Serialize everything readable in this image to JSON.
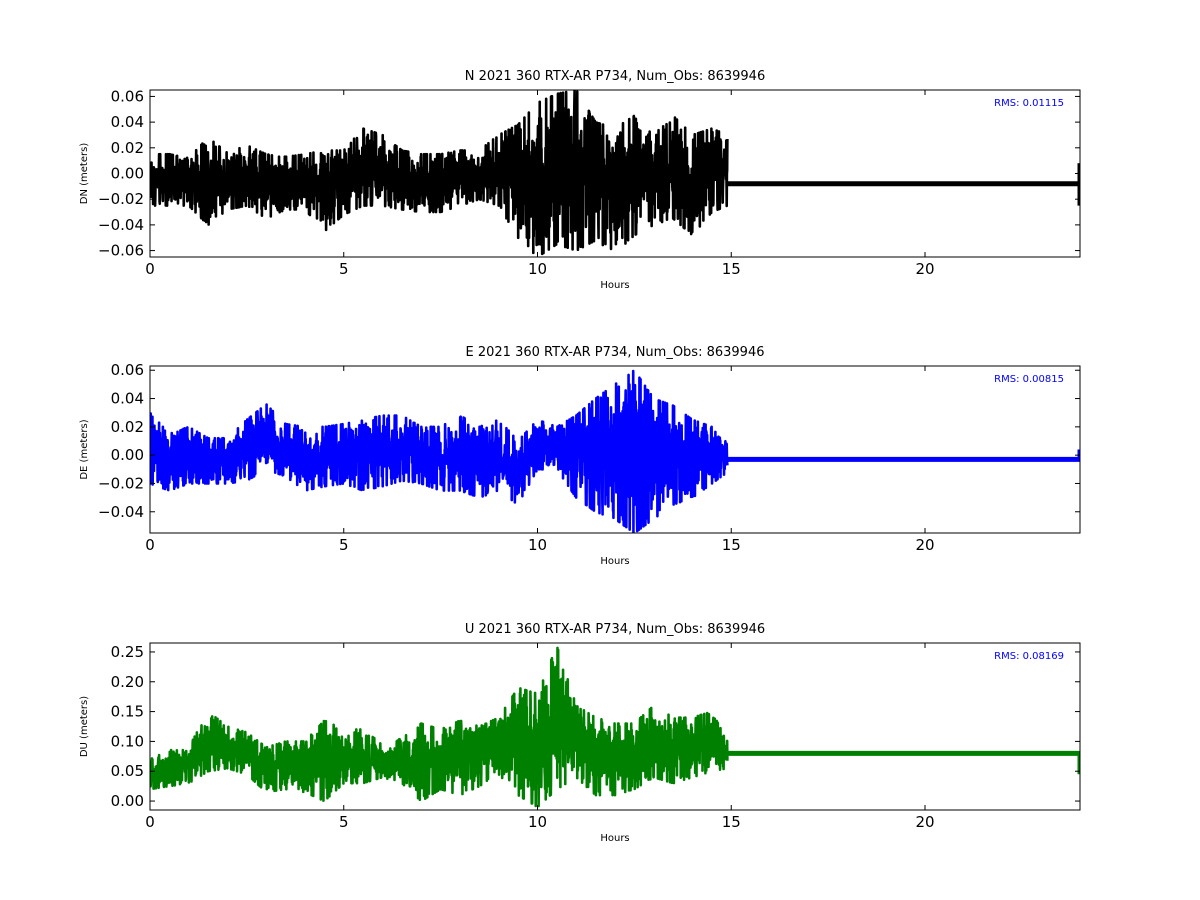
{
  "chart_data": [
    {
      "type": "line",
      "title": "N 2021 360 RTX-AR  P734, Num_Obs: 8639946",
      "xlabel": "Hours",
      "ylabel": "DN (meters)",
      "xlim": [
        0,
        24
      ],
      "ylim": [
        -0.065,
        0.065
      ],
      "xticks": [
        0,
        5,
        10,
        15,
        20
      ],
      "yticks": [
        -0.06,
        -0.04,
        -0.02,
        0.0,
        0.02,
        0.04,
        0.06
      ],
      "ytick_labels": [
        "−0.06",
        "−0.04",
        "−0.02",
        "0.00",
        "0.02",
        "0.04",
        "0.06"
      ],
      "annotation": "RMS:  0.01115",
      "annotation_color": "#0000ff",
      "grid": false,
      "series": [
        {
          "color": "#000000",
          "envelope_x": [
            0,
            0.5,
            1,
            1.5,
            2,
            2.5,
            3,
            3.5,
            4,
            4.5,
            5,
            5.5,
            6,
            6.5,
            7,
            7.5,
            8,
            8.5,
            9,
            9.5,
            10,
            10.5,
            11,
            11.5,
            12,
            12.5,
            13,
            13.5,
            14,
            14.5,
            14.9
          ],
          "envelope_max": [
            0.015,
            0.015,
            0.012,
            0.028,
            0.016,
            0.022,
            0.015,
            0.013,
            0.015,
            0.018,
            0.018,
            0.035,
            0.03,
            0.018,
            0.015,
            0.015,
            0.018,
            0.018,
            0.03,
            0.038,
            0.055,
            0.062,
            0.065,
            0.04,
            0.035,
            0.045,
            0.03,
            0.045,
            0.03,
            0.035,
            0.03
          ],
          "envelope_min": [
            -0.025,
            -0.025,
            -0.025,
            -0.04,
            -0.028,
            -0.025,
            -0.035,
            -0.028,
            -0.028,
            -0.045,
            -0.032,
            -0.025,
            -0.025,
            -0.028,
            -0.03,
            -0.03,
            -0.025,
            -0.02,
            -0.025,
            -0.05,
            -0.065,
            -0.055,
            -0.06,
            -0.052,
            -0.062,
            -0.048,
            -0.04,
            -0.035,
            -0.048,
            -0.03,
            -0.025
          ],
          "flat_x": [
            14.9,
            24
          ],
          "flat_y": -0.008,
          "end_spike": [
            -0.025,
            0.008
          ]
        }
      ]
    },
    {
      "type": "line",
      "title": "E 2021 360 RTX-AR  P734, Num_Obs: 8639946",
      "xlabel": "Hours",
      "ylabel": "DE (meters)",
      "xlim": [
        0,
        24
      ],
      "ylim": [
        -0.055,
        0.063
      ],
      "xticks": [
        0,
        5,
        10,
        15,
        20
      ],
      "yticks": [
        -0.04,
        -0.02,
        0.0,
        0.02,
        0.04,
        0.06
      ],
      "ytick_labels": [
        "−0.04",
        "−0.02",
        "0.00",
        "0.02",
        "0.04",
        "0.06"
      ],
      "annotation": "RMS:  0.00815",
      "annotation_color": "#0000ff",
      "grid": false,
      "series": [
        {
          "color": "#0000ff",
          "envelope_x": [
            0,
            0.5,
            1,
            1.5,
            2,
            2.5,
            3,
            3.5,
            4,
            4.5,
            5,
            5.5,
            6,
            6.5,
            7,
            7.5,
            8,
            8.5,
            9,
            9.5,
            10,
            10.5,
            11,
            11.5,
            12,
            12.5,
            13,
            13.5,
            14,
            14.5,
            14.9
          ],
          "envelope_max": [
            0.03,
            0.015,
            0.02,
            0.012,
            0.012,
            0.025,
            0.036,
            0.022,
            0.02,
            0.02,
            0.022,
            0.025,
            0.028,
            0.028,
            0.02,
            0.02,
            0.028,
            0.02,
            0.025,
            0.01,
            0.025,
            0.02,
            0.028,
            0.04,
            0.05,
            0.06,
            0.04,
            0.035,
            0.025,
            0.02,
            0.01
          ],
          "envelope_min": [
            -0.02,
            -0.025,
            -0.02,
            -0.02,
            -0.02,
            -0.018,
            -0.01,
            -0.015,
            -0.025,
            -0.022,
            -0.02,
            -0.025,
            -0.022,
            -0.018,
            -0.02,
            -0.025,
            -0.025,
            -0.03,
            -0.025,
            -0.035,
            -0.01,
            -0.01,
            -0.03,
            -0.04,
            -0.045,
            -0.055,
            -0.045,
            -0.035,
            -0.03,
            -0.02,
            -0.012
          ],
          "flat_x": [
            14.9,
            24
          ],
          "flat_y": -0.003,
          "end_spike": [
            -0.004,
            0.004
          ]
        }
      ]
    },
    {
      "type": "line",
      "title": "U 2021 360 RTX-AR  P734, Num_Obs: 8639946",
      "xlabel": "Hours",
      "ylabel": "DU (meters)",
      "xlim": [
        0,
        24
      ],
      "ylim": [
        -0.015,
        0.265
      ],
      "xticks": [
        0,
        5,
        10,
        15,
        20
      ],
      "yticks": [
        0.0,
        0.05,
        0.1,
        0.15,
        0.2,
        0.25
      ],
      "ytick_labels": [
        "0.00",
        "0.05",
        "0.10",
        "0.15",
        "0.20",
        "0.25"
      ],
      "annotation": "RMS:  0.08169",
      "annotation_color": "#0000ff",
      "grid": false,
      "series": [
        {
          "color": "#008000",
          "envelope_x": [
            0,
            0.5,
            1,
            1.5,
            2,
            2.5,
            3,
            3.5,
            4,
            4.5,
            5,
            5.5,
            6,
            6.5,
            7,
            7.5,
            8,
            8.5,
            9,
            9.5,
            10,
            10.5,
            11,
            11.5,
            12,
            12.5,
            13,
            13.5,
            14,
            14.5,
            14.9
          ],
          "envelope_max": [
            0.07,
            0.085,
            0.09,
            0.15,
            0.125,
            0.115,
            0.09,
            0.1,
            0.1,
            0.135,
            0.12,
            0.12,
            0.095,
            0.105,
            0.13,
            0.12,
            0.135,
            0.125,
            0.14,
            0.19,
            0.18,
            0.26,
            0.16,
            0.14,
            0.13,
            0.13,
            0.16,
            0.14,
            0.14,
            0.15,
            0.1
          ],
          "envelope_min": [
            0.02,
            0.025,
            0.03,
            0.05,
            0.055,
            0.045,
            0.015,
            0.02,
            0.015,
            0.0,
            0.03,
            0.03,
            0.04,
            0.03,
            0.0,
            0.02,
            0.01,
            0.025,
            0.045,
            0.01,
            -0.01,
            0.02,
            0.04,
            0.01,
            0.01,
            0.02,
            0.04,
            0.03,
            0.04,
            0.05,
            0.055
          ],
          "flat_x": [
            14.9,
            24
          ],
          "flat_y": 0.08,
          "end_spike": [
            0.045,
            0.08
          ]
        }
      ]
    }
  ]
}
